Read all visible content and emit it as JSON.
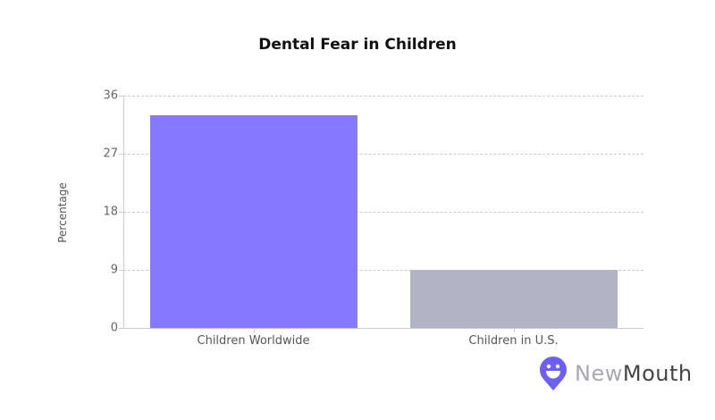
{
  "chart_data": {
    "type": "bar",
    "title": "Dental Fear in Children",
    "xlabel": "",
    "ylabel": "Percentage",
    "categories": [
      "Children Worldwide",
      "Children in U.S."
    ],
    "values": [
      33,
      9
    ],
    "colors": [
      "#8779ff",
      "#b3b3c6"
    ],
    "ylim": [
      0,
      36
    ],
    "yticks": [
      0,
      9,
      18,
      27,
      36
    ],
    "grid": true,
    "legend": null
  },
  "branding": {
    "logo_part1": "New",
    "logo_part2": "Mouth",
    "logo_color": "#6d5ef6"
  }
}
